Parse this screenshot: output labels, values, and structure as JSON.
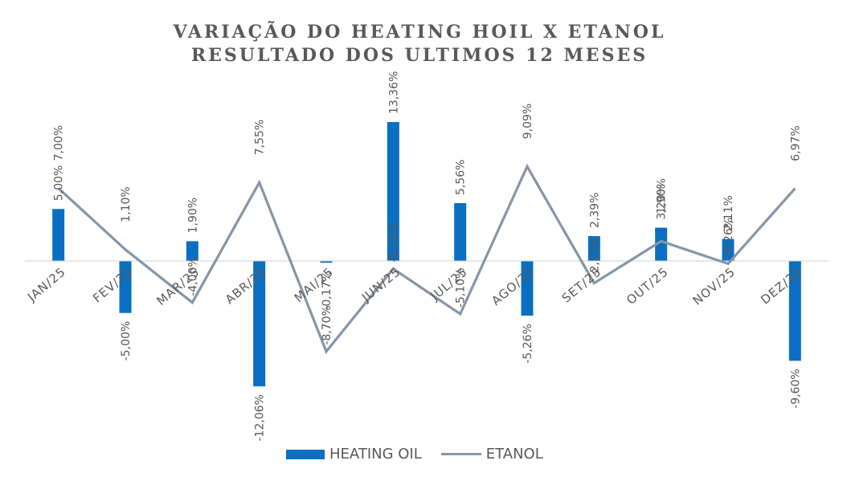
{
  "chart_data": {
    "type": "bar",
    "title_line1": "VARIAÇÃO DO HEATING HOIL X ETANOL",
    "title_line2": "RESULTADO DOS ULTIMOS 12 MESES",
    "categories": [
      "JAN/25",
      "FEV/25",
      "MAR/25",
      "ABR/25",
      "MAI/25",
      "JUN/25",
      "JUL/25",
      "AGO/25",
      "SET/25",
      "OUT/25",
      "NOV/25",
      "DEZ/25"
    ],
    "series": [
      {
        "name": "HEATING OIL",
        "kind": "bar",
        "color": "#0a6fc2",
        "values": [
          5.0,
          -5.0,
          1.9,
          -12.06,
          -0.17,
          13.36,
          5.56,
          -5.26,
          2.39,
          3.2,
          2.11,
          -9.6
        ],
        "labels": [
          "5,00%",
          "-5,00%",
          "1,90%",
          "-12,06%",
          "-0,17%",
          "13,36%",
          "5,56%",
          "-5,26%",
          "2,39%",
          "3,20%",
          "2,11%",
          "-9,60%"
        ]
      },
      {
        "name": "ETANOL",
        "kind": "line",
        "color": "#8496a9",
        "values": [
          7.0,
          1.1,
          -4.0,
          7.55,
          -8.7,
          -0.75,
          -5.1,
          9.09,
          -2.13,
          1.9,
          -0.26,
          6.97
        ],
        "labels": [
          "7,00%",
          "1,10%",
          "-4,00%",
          "7,55%",
          "-8,70%",
          "-0,75%",
          "-5,10%",
          "9,09%",
          "-2,13%",
          "1,90%",
          "-0,26%",
          "6,97%"
        ]
      }
    ],
    "legend_position": "bottom",
    "grid": false
  }
}
